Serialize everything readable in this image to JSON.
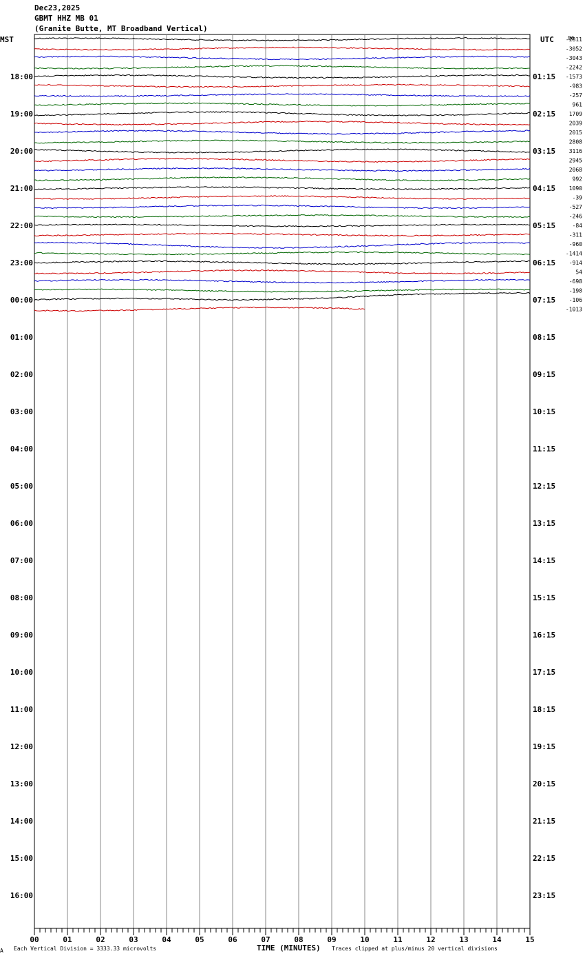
{
  "header": {
    "date": "Dec23,2025",
    "station": "GBMT HHZ MB 01",
    "location": "(Granite Butte, MT Broadband Vertical)"
  },
  "chart_data": {
    "type": "line",
    "title": "GBMT HHZ MB 01",
    "left_zone_label": "MST",
    "right_zone_label": "UTC",
    "xlabel": "TIME (MINUTES)",
    "x_ticks": [
      "00",
      "01",
      "02",
      "03",
      "04",
      "05",
      "06",
      "07",
      "08",
      "09",
      "10",
      "11",
      "12",
      "13",
      "14",
      "15"
    ],
    "xlim": [
      0,
      15
    ],
    "left_hour_labels": [
      "18:00",
      "19:00",
      "20:00",
      "21:00",
      "22:00",
      "23:00",
      "00:00",
      "01:00",
      "02:00",
      "03:00",
      "04:00",
      "05:00",
      "06:00",
      "07:00",
      "08:00",
      "09:00",
      "10:00",
      "11:00",
      "12:00",
      "13:00",
      "14:00",
      "15:00",
      "16:00"
    ],
    "right_hour_labels": [
      "01:15",
      "02:15",
      "03:15",
      "04:15",
      "05:15",
      "06:15",
      "07:15",
      "08:15",
      "09:15",
      "10:15",
      "11:15",
      "12:15",
      "13:15",
      "14:15",
      "15:15",
      "16:15",
      "17:15",
      "18:15",
      "19:15",
      "20:15",
      "21:15",
      "22:15",
      "23:15"
    ],
    "first_label_row": 4,
    "rows_per_hour": 4,
    "total_rows": 96,
    "trace_colors": [
      "#000000",
      "#cc0000",
      "#0000cc",
      "#006600"
    ],
    "trace_offsets": [
      "-2811",
      "-3052",
      "-3043",
      "-2242",
      "-1573",
      "-983",
      "-257",
      "961",
      "1709",
      "2039",
      "2015",
      "2808",
      "3116",
      "2945",
      "2068",
      "992",
      "1090",
      "-39",
      "-527",
      "-246",
      "-84",
      "-311",
      "-960",
      "-1414",
      "-914",
      "54",
      "-698",
      "-198",
      "-106",
      "-1013"
    ],
    "last_trace_end_minute": 10,
    "top_right_note": "96",
    "footnote_left": "Each Vertical Division = 3333.33 microvolts",
    "footnote_right": "Traces clipped at plus/minus 20 vertical divisions",
    "footnote_mark": "A"
  }
}
